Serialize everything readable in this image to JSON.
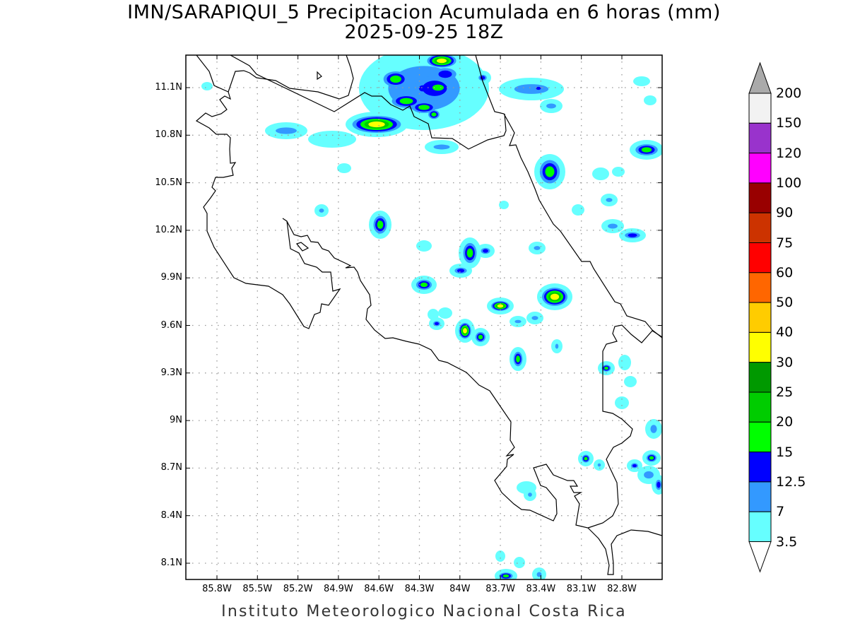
{
  "header": {
    "title": "IMN/SARAPIQUI_5 Precipitacion Acumulada en 6 horas (mm)",
    "subtitle": "2025-09-25 18Z"
  },
  "footer": "Instituto Meteorologico Nacional Costa Rica",
  "axes": {
    "lat_labels": [
      "11.1N",
      "10.8N",
      "10.5N",
      "10.2N",
      "9.9N",
      "9.6N",
      "9.3N",
      "9N",
      "8.7N",
      "8.4N",
      "8.1N"
    ],
    "lon_labels": [
      "85.8W",
      "85.5W",
      "85.2W",
      "84.9W",
      "84.6W",
      "84.3W",
      "84W",
      "83.7W",
      "83.4W",
      "83.1W",
      "82.8W"
    ]
  },
  "colorbar": {
    "labels": [
      "200",
      "150",
      "120",
      "100",
      "90",
      "75",
      "60",
      "50",
      "40",
      "30",
      "25",
      "20",
      "15",
      "12.5",
      "7",
      "3.5"
    ],
    "colors_top_to_bottom": [
      "#f2f2f2",
      "#9933cc",
      "#ff00ff",
      "#990000",
      "#cc3300",
      "#ff0000",
      "#ff6600",
      "#ffcc00",
      "#ffff00",
      "#009900",
      "#00cc00",
      "#00ff00",
      "#0000ff",
      "#3399ff",
      "#66ffff"
    ],
    "over_color": "#aaaaaa",
    "under_color": "#ffffff"
  },
  "precip_colors": [
    "#66ffff",
    "#3399ff",
    "#0000ff",
    "#00ff00",
    "#00cc00",
    "#ffff00"
  ]
}
